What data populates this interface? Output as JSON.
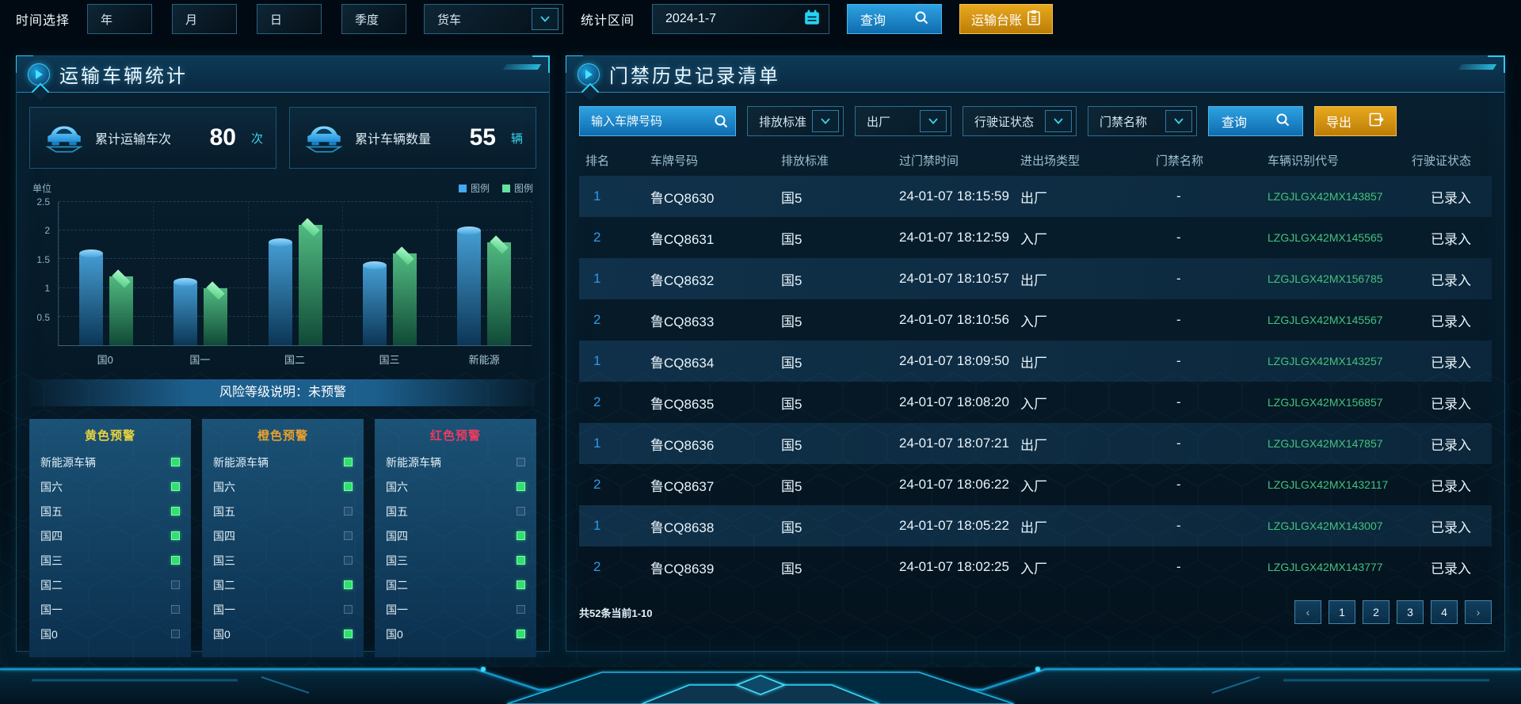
{
  "topbar": {
    "time_label": "时间选择",
    "buttons": [
      "年",
      "月",
      "日",
      "季度"
    ],
    "vehicle_select": "货车",
    "range_label": "统计区间",
    "date_value": "2024-1-7",
    "query_label": "查询",
    "ledger_label": "运输台账"
  },
  "left_panel": {
    "title": "运输车辆统计",
    "stats": [
      {
        "label": "累计运输车次",
        "value": "80",
        "unit": "次"
      },
      {
        "label": "累计车辆数量",
        "value": "55",
        "unit": "辆"
      }
    ],
    "risk_banner": "风险等级说明：未预警",
    "warning_columns": [
      {
        "title": "黄色预警",
        "color": "#e8d23c",
        "items": [
          {
            "label": "新能源车辆",
            "checked": true
          },
          {
            "label": "国六",
            "checked": true
          },
          {
            "label": "国五",
            "checked": true
          },
          {
            "label": "国四",
            "checked": true
          },
          {
            "label": "国三",
            "checked": true
          },
          {
            "label": "国二",
            "checked": false
          },
          {
            "label": "国一",
            "checked": false
          },
          {
            "label": "国0",
            "checked": false
          }
        ]
      },
      {
        "title": "橙色预警",
        "color": "#e8a02e",
        "items": [
          {
            "label": "新能源车辆",
            "checked": true
          },
          {
            "label": "国六",
            "checked": true
          },
          {
            "label": "国五",
            "checked": false
          },
          {
            "label": "国四",
            "checked": false
          },
          {
            "label": "国三",
            "checked": false
          },
          {
            "label": "国二",
            "checked": true
          },
          {
            "label": "国一",
            "checked": false
          },
          {
            "label": "国0",
            "checked": true
          }
        ]
      },
      {
        "title": "红色预警",
        "color": "#ef3a60",
        "items": [
          {
            "label": "新能源车辆",
            "checked": false
          },
          {
            "label": "国六",
            "checked": true
          },
          {
            "label": "国五",
            "checked": false
          },
          {
            "label": "国四",
            "checked": true
          },
          {
            "label": "国三",
            "checked": true
          },
          {
            "label": "国二",
            "checked": true
          },
          {
            "label": "国一",
            "checked": false
          },
          {
            "label": "国0",
            "checked": true
          }
        ]
      }
    ]
  },
  "chart_data": {
    "type": "bar",
    "unit_label": "单位",
    "categories": [
      "国0",
      "国一",
      "国二",
      "国三",
      "新能源"
    ],
    "series": [
      {
        "name": "图例",
        "color": "#41aaf0",
        "values": [
          1.6,
          1.1,
          1.8,
          1.4,
          2.0
        ]
      },
      {
        "name": "图例",
        "color": "#62e39f",
        "values": [
          1.2,
          1.0,
          2.1,
          1.6,
          1.8
        ]
      }
    ],
    "ylim": [
      0,
      2.5
    ],
    "yticks": [
      0.5,
      1,
      1.5,
      2,
      2.5
    ],
    "grid": "dashed",
    "legend_position": "top-right"
  },
  "right_panel": {
    "title": "门禁历史记录清单",
    "filters": {
      "search_placeholder": "输入车牌号码",
      "dropdowns": [
        "排放标准",
        "出厂",
        "行驶证状态",
        "门禁名称"
      ],
      "query_label": "查询",
      "export_label": "导出"
    },
    "table": {
      "headers": [
        "排名",
        "车牌号码",
        "排放标准",
        "过门禁时间",
        "进出场类型",
        "门禁名称",
        "车辆识别代号",
        "行驶证状态"
      ],
      "rows": [
        {
          "rank": "1",
          "plate": "鲁CQ8630",
          "standard": "国5",
          "time": "24-01-07 18:15:59",
          "type": "出厂",
          "gate": "-",
          "vin": "LZGJLGX42MX143857",
          "status": "已录入"
        },
        {
          "rank": "2",
          "plate": "鲁CQ8631",
          "standard": "国5",
          "time": "24-01-07 18:12:59",
          "type": "入厂",
          "gate": "-",
          "vin": "LZGJLGX42MX145565",
          "status": "已录入"
        },
        {
          "rank": "1",
          "plate": "鲁CQ8632",
          "standard": "国5",
          "time": "24-01-07 18:10:57",
          "type": "出厂",
          "gate": "-",
          "vin": "LZGJLGX42MX156785",
          "status": "已录入"
        },
        {
          "rank": "2",
          "plate": "鲁CQ8633",
          "standard": "国5",
          "time": "24-01-07 18:10:56",
          "type": "入厂",
          "gate": "-",
          "vin": "LZGJLGX42MX145567",
          "status": "已录入"
        },
        {
          "rank": "1",
          "plate": "鲁CQ8634",
          "standard": "国5",
          "time": "24-01-07 18:09:50",
          "type": "出厂",
          "gate": "-",
          "vin": "LZGJLGX42MX143257",
          "status": "已录入"
        },
        {
          "rank": "2",
          "plate": "鲁CQ8635",
          "standard": "国5",
          "time": "24-01-07 18:08:20",
          "type": "入厂",
          "gate": "-",
          "vin": "LZGJLGX42MX156857",
          "status": "已录入"
        },
        {
          "rank": "1",
          "plate": "鲁CQ8636",
          "standard": "国5",
          "time": "24-01-07 18:07:21",
          "type": "出厂",
          "gate": "-",
          "vin": "LZGJLGX42MX147857",
          "status": "已录入"
        },
        {
          "rank": "2",
          "plate": "鲁CQ8637",
          "standard": "国5",
          "time": "24-01-07 18:06:22",
          "type": "入厂",
          "gate": "-",
          "vin": "LZGJLGX42MX1432117",
          "status": "已录入"
        },
        {
          "rank": "1",
          "plate": "鲁CQ8638",
          "standard": "国5",
          "time": "24-01-07 18:05:22",
          "type": "出厂",
          "gate": "-",
          "vin": "LZGJLGX42MX143007",
          "status": "已录入"
        },
        {
          "rank": "2",
          "plate": "鲁CQ8639",
          "standard": "国5",
          "time": "24-01-07 18:02:25",
          "type": "入厂",
          "gate": "-",
          "vin": "LZGJLGX42MX143777",
          "status": "已录入"
        }
      ]
    },
    "pagination": {
      "summary": "共52条当前1-10",
      "prev": "‹",
      "next": "›",
      "pages": [
        "1",
        "2",
        "3",
        "4"
      ]
    }
  },
  "colors": {
    "accent_cyan": "#2ad0f5",
    "button_blue": "#1b86c8",
    "button_orange": "#d9941a",
    "rank_blue": "#2e9ae8",
    "vin_green": "#43c27b",
    "row_highlight": "#11354f"
  }
}
